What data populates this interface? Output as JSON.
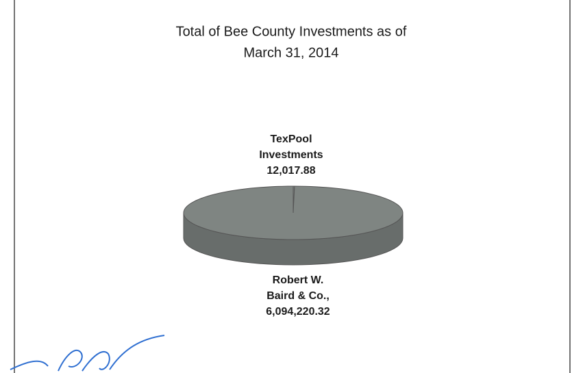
{
  "chart_data": {
    "type": "pie3d",
    "title": [
      "Total of Bee County Investments as of",
      "March 31, 2014"
    ],
    "categories": [
      [
        "TexPool",
        "Investments"
      ],
      [
        "Robert W.",
        "Baird & Co.,"
      ]
    ],
    "values": [
      12017.88,
      6094220.32
    ],
    "value_labels": [
      "12,017.88",
      "6,094,220.32"
    ],
    "colors": [
      "#7f8582",
      "#7f8582"
    ]
  }
}
